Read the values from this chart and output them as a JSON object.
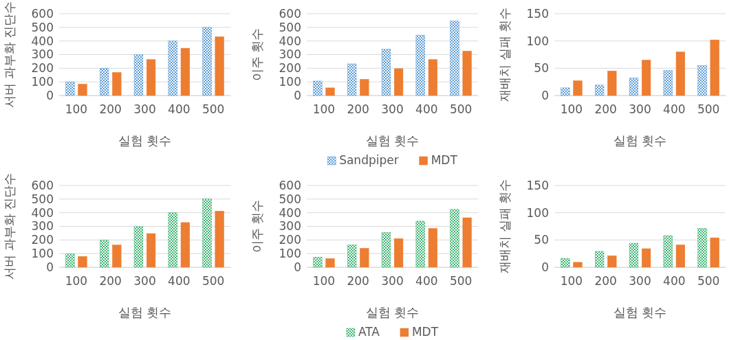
{
  "chart_data": [
    {
      "type": "bar",
      "xlabel": "실험 횟수",
      "ylabel": "서버 과부화 진단수",
      "categories": [
        "100",
        "200",
        "300",
        "400",
        "500"
      ],
      "ylim": [
        0,
        600
      ],
      "yticks": [
        0,
        100,
        200,
        300,
        400,
        500,
        600
      ],
      "grid": "y",
      "series": [
        {
          "color": "#5b9bd5",
          "values": [
            100,
            200,
            300,
            400,
            500
          ]
        },
        {
          "color": "#ed7d31",
          "values": [
            84,
            169,
            264,
            347,
            431
          ]
        }
      ]
    },
    {
      "type": "bar",
      "xlabel": "실험 횟수",
      "ylabel": "이주 횟수",
      "categories": [
        "100",
        "200",
        "300",
        "400",
        "500"
      ],
      "ylim": [
        0,
        600
      ],
      "yticks": [
        0,
        100,
        200,
        300,
        400,
        500,
        600
      ],
      "grid": "y",
      "legend": "bottom",
      "series": [
        {
          "name": "Sandpiper",
          "color": "#5b9bd5",
          "values": [
            106,
            232,
            340,
            443,
            546
          ]
        },
        {
          "name": "MDT",
          "color": "#ed7d31",
          "values": [
            56,
            119,
            197,
            264,
            326
          ]
        }
      ]
    },
    {
      "type": "bar",
      "xlabel": "실험 횟수",
      "ylabel": "재배치 실패 횟수",
      "categories": [
        "100",
        "200",
        "300",
        "400",
        "500"
      ],
      "ylim": [
        0,
        150
      ],
      "yticks": [
        0,
        50,
        100,
        150
      ],
      "grid": "y",
      "series": [
        {
          "color": "#5b9bd5",
          "values": [
            14,
            19,
            32,
            46,
            55
          ]
        },
        {
          "color": "#ed7d31",
          "values": [
            27,
            45,
            65,
            80,
            102
          ]
        }
      ]
    },
    {
      "type": "bar",
      "xlabel": "실험 횟수",
      "ylabel": "서버 과부화 진단수",
      "categories": [
        "100",
        "200",
        "300",
        "400",
        "500"
      ],
      "ylim": [
        0,
        600
      ],
      "yticks": [
        0,
        100,
        200,
        300,
        400,
        500,
        600
      ],
      "grid": "y",
      "series": [
        {
          "color": "#3cb371",
          "values": [
            97,
            199,
            298,
            400,
            501
          ]
        },
        {
          "color": "#ed7d31",
          "values": [
            79,
            163,
            247,
            328,
            412
          ]
        }
      ]
    },
    {
      "type": "bar",
      "xlabel": "실험 횟수",
      "ylabel": "이주 횟수",
      "categories": [
        "100",
        "200",
        "300",
        "400",
        "500"
      ],
      "ylim": [
        0,
        600
      ],
      "yticks": [
        0,
        100,
        200,
        300,
        400,
        500,
        600
      ],
      "grid": "y",
      "legend": "bottom",
      "series": [
        {
          "name": "ATA",
          "color": "#3cb371",
          "values": [
            74,
            164,
            254,
            338,
            424
          ]
        },
        {
          "name": "MDT",
          "color": "#ed7d31",
          "values": [
            63,
            139,
            210,
            285,
            363
          ]
        }
      ]
    },
    {
      "type": "bar",
      "xlabel": "실험 횟수",
      "ylabel": "재배치 실패 횟수",
      "categories": [
        "100",
        "200",
        "300",
        "400",
        "500"
      ],
      "ylim": [
        0,
        150
      ],
      "yticks": [
        0,
        50,
        100,
        150
      ],
      "grid": "y",
      "series": [
        {
          "color": "#3cb371",
          "values": [
            16,
            29,
            44,
            58,
            71
          ]
        },
        {
          "color": "#ed7d31",
          "values": [
            9,
            21,
            34,
            41,
            54
          ]
        }
      ]
    }
  ]
}
